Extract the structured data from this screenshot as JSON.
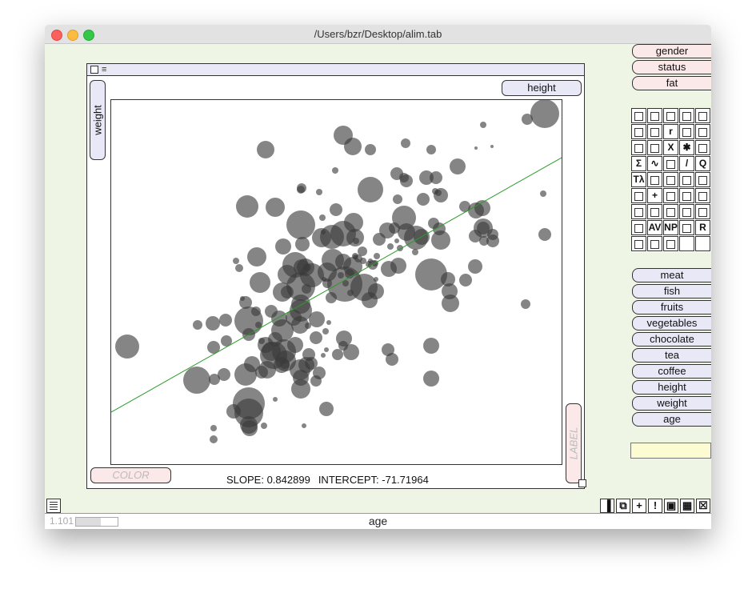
{
  "window": {
    "title": "/Users/bzr/Desktop/alim.tab"
  },
  "plot": {
    "x_variable": "height",
    "y_variable": "weight",
    "color_slot": "COLOR",
    "label_slot": "LABEL",
    "slope_text": "SLOPE: 0.842899",
    "intercept_text": "INTERCEPT: -71.71964"
  },
  "categorical_variables": [
    "gender",
    "status",
    "fat"
  ],
  "numeric_variables": [
    "meat",
    "fish",
    "fruits",
    "vegetables",
    "chocolate",
    "tea",
    "coffee",
    "height",
    "weight",
    "age"
  ],
  "palette_tools": [
    "pie-chart-icon",
    "bar-chart-icon",
    "line-chart-icon",
    "dot-plot-icon",
    "grid-icon",
    "mosaic-icon",
    "histogram-icon",
    "r-icon",
    "circles-icon",
    "circles-cluster-icon",
    "stacked-icon",
    "bubbles-icon",
    "x-icon",
    "star-icon",
    "diagonal-dots-icon",
    "sigma-icon",
    "wave-icon",
    "bars-icon",
    "slash-icon",
    "qq-icon",
    "lambda-icon",
    "scatter-icon",
    "clock-icon",
    "regression-icon",
    "boxes-icon",
    "step-icon",
    "cross-icon",
    "angle-icon",
    "fan-icon",
    "small-bars-icon",
    "face-icon",
    "triangle-icon",
    "stack-icon",
    "spikes-icon",
    "scatter-small-icon",
    "smiley-icon",
    "av-icon",
    "np-icon",
    "tree-icon",
    "r-letter-icon",
    "map-icon",
    "dots-grid-icon",
    "house-icon",
    "empty-icon",
    "empty-icon"
  ],
  "status": {
    "version": "1.101",
    "progress": 0.6,
    "current_variable": "age"
  },
  "toolbar_icons": [
    "bars-icon",
    "copy-icon",
    "plus-icon",
    "exclamation-icon",
    "image-icon",
    "table-icon",
    "trash-icon"
  ],
  "chart_data": {
    "type": "scatter",
    "xlabel": "height",
    "ylabel": "weight",
    "regression": {
      "slope": 0.842899,
      "intercept": -71.71964,
      "color": "#2a9a2a"
    },
    "bubble_color": "#3a3a3a"
  }
}
